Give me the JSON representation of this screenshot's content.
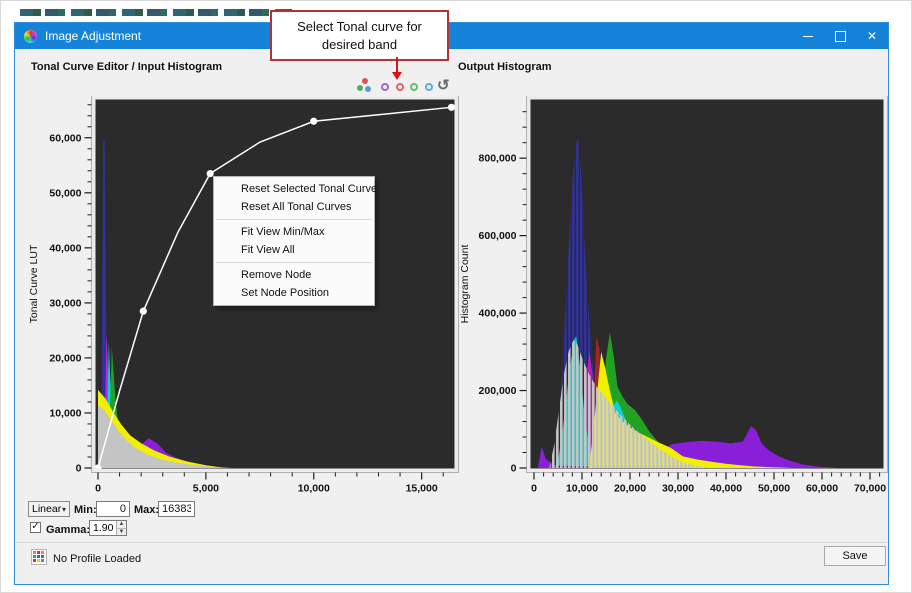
{
  "window": {
    "title": "Image Adjustment"
  },
  "icons": {
    "minimize": "–",
    "close": "✕",
    "dropdown_arrow": "▾",
    "spinner_up": "▲",
    "spinner_down": "▼",
    "checkmark": "✓",
    "reset": "↺"
  },
  "callout": {
    "text": "Select Tonal curve for desired band"
  },
  "panels": {
    "left_title": "Tonal Curve Editor / Input Histogram",
    "right_title": "Output Histogram"
  },
  "band_selector": {
    "all_bands": {
      "colors": [
        "#e05252",
        "#54ad54",
        "#5b9bd5"
      ]
    },
    "bands": [
      {
        "name": "purple",
        "color": "#9a68cf"
      },
      {
        "name": "red",
        "color": "#df6464"
      },
      {
        "name": "green",
        "color": "#69bd69"
      },
      {
        "name": "blue",
        "color": "#64a9dc"
      }
    ]
  },
  "context_menu": {
    "items": [
      "Reset Selected Tonal Curve",
      "Reset All Tonal Curves",
      "Fit View Min/Max",
      "Fit View All",
      "Remove Node",
      "Set Node Position"
    ]
  },
  "controls": {
    "scale_mode": {
      "value": "Linear"
    },
    "min": {
      "label": "Min:",
      "value": "0"
    },
    "max": {
      "label": "Max:",
      "value": "16383"
    },
    "gamma": {
      "label": "Gamma:",
      "value": "1.90",
      "checked": true
    }
  },
  "footer": {
    "status_text": "No Profile Loaded",
    "save_label": "Save",
    "palette_colors": [
      "#999999",
      "#dd3333",
      "#ee8822",
      "#33aa44",
      "#3366cc",
      "#666666",
      "#cc3344",
      "#eecc22",
      "#3399cc"
    ]
  },
  "chart_data": [
    {
      "id": "input",
      "type": "area",
      "title": "Tonal Curve Editor / Input Histogram",
      "xlabel": "",
      "ylabel": "Tonal Curve LUT",
      "xlim": [
        0,
        16500
      ],
      "ylim": [
        0,
        66500
      ],
      "x_major_ticks": [
        0,
        5000,
        10000,
        15000
      ],
      "x_minor_step": 1000,
      "y_major_ticks": [
        0,
        10000,
        20000,
        30000,
        40000,
        50000,
        60000
      ],
      "y_minor_step": 2000,
      "plot_background": "#2b2b2b",
      "tonal_curve": {
        "color": "#ffffff",
        "nodes": [
          [
            0,
            0
          ],
          [
            2100,
            28500
          ],
          [
            5200,
            53500
          ],
          [
            10000,
            63000
          ],
          [
            16383,
            65535
          ]
        ],
        "path": [
          [
            0,
            0
          ],
          [
            1000,
            14000
          ],
          [
            2100,
            28500
          ],
          [
            3700,
            42800
          ],
          [
            5200,
            53500
          ],
          [
            7500,
            59200
          ],
          [
            10000,
            63000
          ],
          [
            16383,
            65535
          ]
        ]
      },
      "series": [
        {
          "name": "blue-band",
          "color": "#31319b",
          "comb": false,
          "points": [
            [
              150,
              0
            ],
            [
              240,
              59500
            ],
            [
              310,
              59500
            ],
            [
              380,
              25000
            ],
            [
              460,
              8000
            ],
            [
              560,
              0
            ]
          ]
        },
        {
          "name": "magenta-band",
          "color": "#cc22cc",
          "comb": false,
          "points": [
            [
              280,
              0
            ],
            [
              390,
              24500
            ],
            [
              520,
              13000
            ],
            [
              660,
              4000
            ],
            [
              820,
              0
            ]
          ]
        },
        {
          "name": "cyan-band",
          "color": "#00d5d5",
          "comb": false,
          "points": [
            [
              380,
              0
            ],
            [
              500,
              23200
            ],
            [
              640,
              9000
            ],
            [
              800,
              2000
            ],
            [
              950,
              0
            ]
          ]
        },
        {
          "name": "green-band",
          "color": "#22a122",
          "comb": false,
          "points": [
            [
              480,
              0
            ],
            [
              640,
              22000
            ],
            [
              820,
              12000
            ],
            [
              1050,
              4500
            ],
            [
              1350,
              1200
            ],
            [
              1650,
              0
            ]
          ]
        },
        {
          "name": "purple-band",
          "color": "#8a1fd9",
          "comb": false,
          "points": [
            [
              550,
              0
            ],
            [
              900,
              2700
            ],
            [
              1250,
              4400
            ],
            [
              1600,
              3800
            ],
            [
              1950,
              4100
            ],
            [
              2350,
              5400
            ],
            [
              2750,
              4500
            ],
            [
              3150,
              2800
            ],
            [
              3650,
              1800
            ],
            [
              4250,
              1100
            ],
            [
              5000,
              500
            ],
            [
              5800,
              0
            ]
          ]
        },
        {
          "name": "yellow-band",
          "color": "#f0f000",
          "comb": false,
          "points": [
            [
              0,
              14200
            ],
            [
              350,
              12600
            ],
            [
              700,
              10200
            ],
            [
              1100,
              7800
            ],
            [
              1500,
              5900
            ],
            [
              2000,
              4500
            ],
            [
              2600,
              3200
            ],
            [
              3300,
              2100
            ],
            [
              4100,
              1200
            ],
            [
              5000,
              500
            ],
            [
              5900,
              0
            ]
          ]
        },
        {
          "name": "gray-band",
          "color": "#c4c4c4",
          "comb": false,
          "points": [
            [
              0,
              11300
            ],
            [
              300,
              10500
            ],
            [
              600,
              8800
            ],
            [
              950,
              6800
            ],
            [
              1350,
              4900
            ],
            [
              1800,
              3500
            ],
            [
              2300,
              2400
            ],
            [
              2900,
              1600
            ],
            [
              3600,
              1000
            ],
            [
              4400,
              550
            ],
            [
              5300,
              200
            ],
            [
              6200,
              0
            ]
          ]
        }
      ]
    },
    {
      "id": "output",
      "type": "area",
      "title": "Output Histogram",
      "xlabel": "",
      "ylabel": "Histogram Count",
      "xlim": [
        0,
        72500
      ],
      "ylim": [
        0,
        945000
      ],
      "x_major_ticks": [
        0,
        10000,
        20000,
        30000,
        40000,
        50000,
        60000,
        70000
      ],
      "x_minor_step": 2000,
      "y_major_ticks": [
        0,
        200000,
        400000,
        600000,
        800000
      ],
      "y_minor_step": 40000,
      "plot_background": "#2b2b2b",
      "series": [
        {
          "name": "blue-band",
          "color": "#31319b",
          "comb": true,
          "points": [
            [
              3600,
              0
            ],
            [
              4600,
              60000
            ],
            [
              5400,
              160000
            ],
            [
              6200,
              320000
            ],
            [
              7000,
              520000
            ],
            [
              7800,
              700000
            ],
            [
              8600,
              830000
            ],
            [
              9200,
              850000
            ],
            [
              9800,
              760000
            ],
            [
              10600,
              560000
            ],
            [
              11400,
              400000
            ],
            [
              12200,
              270000
            ],
            [
              13000,
              170000
            ],
            [
              14000,
              90000
            ],
            [
              15000,
              40000
            ],
            [
              16200,
              12000
            ],
            [
              17500,
              0
            ]
          ]
        },
        {
          "name": "magenta-band",
          "color": "#b81cb8",
          "comb": false,
          "points": [
            [
              9500,
              0
            ],
            [
              10300,
              120000
            ],
            [
              11000,
              250000
            ],
            [
              11600,
              300000
            ],
            [
              12200,
              240000
            ],
            [
              12900,
              120000
            ],
            [
              13600,
              30000
            ],
            [
              14200,
              0
            ]
          ]
        },
        {
          "name": "red-band",
          "color": "#a32626",
          "comb": false,
          "points": [
            [
              11800,
              0
            ],
            [
              12400,
              150000
            ],
            [
              13000,
              340000
            ],
            [
              13600,
              310000
            ],
            [
              14200,
              180000
            ],
            [
              14900,
              60000
            ],
            [
              15500,
              0
            ]
          ]
        },
        {
          "name": "green-band",
          "color": "#22a122",
          "comb": false,
          "points": [
            [
              13200,
              0
            ],
            [
              14200,
              120000
            ],
            [
              15000,
              280000
            ],
            [
              15800,
              350000
            ],
            [
              16600,
              290000
            ],
            [
              17400,
              210000
            ],
            [
              18400,
              185000
            ],
            [
              19500,
              165000
            ],
            [
              21000,
              150000
            ],
            [
              22500,
              125000
            ],
            [
              24000,
              95000
            ],
            [
              26000,
              65000
            ],
            [
              28000,
              40000
            ],
            [
              30000,
              18000
            ],
            [
              32000,
              6000
            ],
            [
              34000,
              0
            ]
          ]
        },
        {
          "name": "cyan-band",
          "color": "#00d5d5",
          "comb": false,
          "points": [
            [
              4800,
              0
            ],
            [
              6000,
              100000
            ],
            [
              7200,
              230000
            ],
            [
              8300,
              330000
            ],
            [
              8800,
              340000
            ],
            [
              9600,
              260000
            ],
            [
              10500,
              140000
            ],
            [
              11400,
              60000
            ],
            [
              12300,
              15000
            ],
            [
              13200,
              0
            ]
          ]
        },
        {
          "name": "cyan-band-2",
          "color": "#00d5d5",
          "comb": false,
          "points": [
            [
              14500,
              0
            ],
            [
              15500,
              90000
            ],
            [
              16500,
              160000
            ],
            [
              17300,
              175000
            ],
            [
              18300,
              150000
            ],
            [
              19500,
              110000
            ],
            [
              21000,
              60000
            ],
            [
              22500,
              20000
            ],
            [
              24000,
              0
            ]
          ]
        },
        {
          "name": "purple-band",
          "color": "#8a1fd9",
          "comb": false,
          "points": [
            [
              800,
              0
            ],
            [
              1600,
              55000
            ],
            [
              2400,
              25000
            ],
            [
              4000,
              8000
            ],
            [
              10000,
              4000
            ],
            [
              20000,
              8000
            ],
            [
              24000,
              25000
            ],
            [
              26500,
              48000
            ],
            [
              29000,
              62000
            ],
            [
              32000,
              67000
            ],
            [
              35000,
              70000
            ],
            [
              38000,
              68000
            ],
            [
              41000,
              64000
            ],
            [
              43500,
              68000
            ],
            [
              45200,
              108000
            ],
            [
              46200,
              98000
            ],
            [
              47500,
              62000
            ],
            [
              49000,
              45000
            ],
            [
              51000,
              30000
            ],
            [
              53500,
              18000
            ],
            [
              56000,
              9000
            ],
            [
              59000,
              4000
            ],
            [
              63000,
              0
            ]
          ]
        },
        {
          "name": "yellow-band",
          "color": "#f0f000",
          "comb": false,
          "points": [
            [
              11500,
              0
            ],
            [
              12800,
              150000
            ],
            [
              14000,
              300000
            ],
            [
              14800,
              260000
            ],
            [
              15800,
              200000
            ],
            [
              17000,
              140000
            ],
            [
              18500,
              120000
            ],
            [
              20000,
              105000
            ],
            [
              22000,
              90000
            ],
            [
              24000,
              78000
            ],
            [
              26000,
              66000
            ],
            [
              28500,
              52000
            ],
            [
              31000,
              30000
            ],
            [
              34000,
              22000
            ],
            [
              37000,
              16000
            ],
            [
              40000,
              11000
            ],
            [
              43000,
              7000
            ],
            [
              46000,
              4000
            ],
            [
              50000,
              2000
            ],
            [
              54000,
              0
            ]
          ]
        },
        {
          "name": "gray-band",
          "color": "#c4c4c4",
          "comb": true,
          "points": [
            [
              3200,
              0
            ],
            [
              4200,
              60000
            ],
            [
              5200,
              150000
            ],
            [
              6200,
              240000
            ],
            [
              7200,
              300000
            ],
            [
              8200,
              330000
            ],
            [
              9000,
              320000
            ],
            [
              10000,
              285000
            ],
            [
              11000,
              255000
            ],
            [
              12000,
              230000
            ],
            [
              13000,
              210000
            ],
            [
              14000,
              195000
            ],
            [
              15000,
              180000
            ],
            [
              16500,
              160000
            ],
            [
              18000,
              138000
            ],
            [
              19500,
              118000
            ],
            [
              21000,
              100000
            ],
            [
              22500,
              85000
            ],
            [
              24000,
              68000
            ],
            [
              26000,
              50000
            ],
            [
              28000,
              34000
            ],
            [
              30000,
              20000
            ],
            [
              32000,
              11000
            ],
            [
              34000,
              5000
            ],
            [
              36500,
              2000
            ],
            [
              39000,
              0
            ]
          ]
        }
      ]
    }
  ]
}
